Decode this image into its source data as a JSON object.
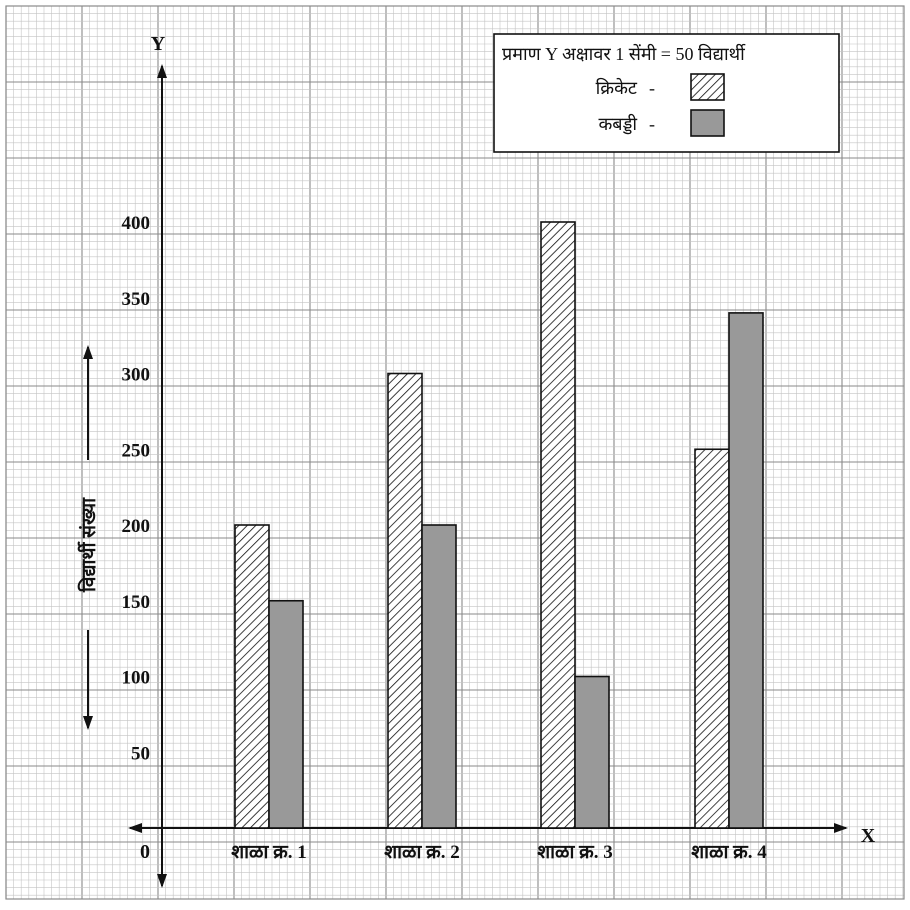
{
  "chart_data": {
    "type": "bar",
    "categories": [
      "शाळा क्र. 1",
      "शाळा क्र. 2",
      "शाळा क्र. 3",
      "शाळा क्र. 4"
    ],
    "series": [
      {
        "name": "क्रिकेट",
        "values": [
          200,
          300,
          400,
          250
        ],
        "pattern": "hatched"
      },
      {
        "name": "कबड्डी",
        "values": [
          150,
          200,
          100,
          340
        ],
        "color": "#999999"
      }
    ],
    "ylim": [
      0,
      400
    ],
    "yticks": [
      "50",
      "100",
      "150",
      "200",
      "250",
      "300",
      "350",
      "400"
    ],
    "ylabel": "विद्यार्थी संख्या",
    "x_axis_name": "X",
    "y_axis_name": "Y",
    "origin_label": "0",
    "scale_note": "प्रमाण Y अक्षावर  1 सेंमी = 50 विद्यार्थी",
    "legend_dash": "-",
    "grid": true,
    "legend_position": "top-right",
    "colors": {
      "grid_minor": "#c4c4c4",
      "grid_major": "#8a8a8a",
      "kabaddi_fill": "#999999",
      "axis": "#111111"
    }
  }
}
